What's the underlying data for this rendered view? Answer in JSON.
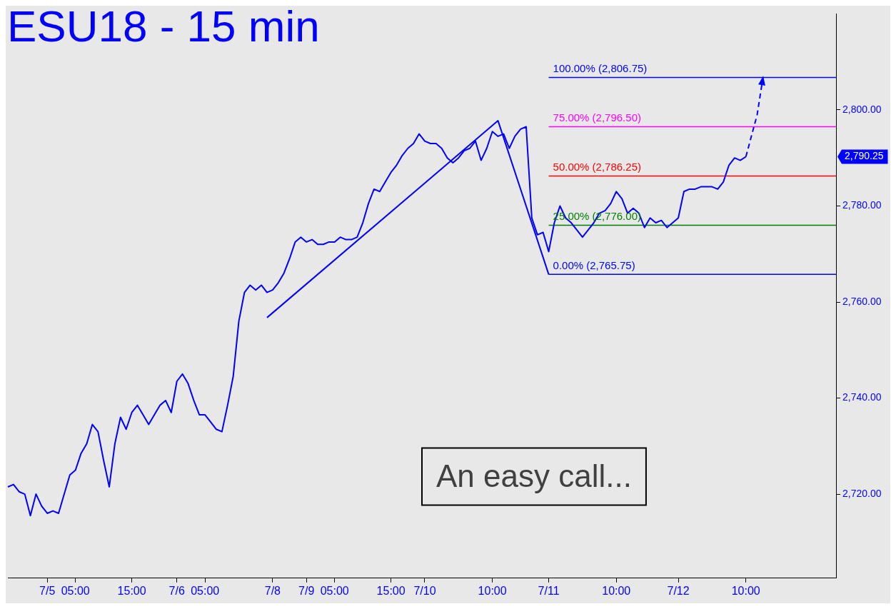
{
  "chart_data": {
    "type": "line",
    "title": "ESU18 - 15 min",
    "categories": [
      null,
      null,
      null,
      null,
      null,
      null,
      null,
      "7/5",
      null,
      null,
      null,
      null,
      "05:00",
      null,
      null,
      null,
      null,
      null,
      null,
      null,
      null,
      null,
      "15:00",
      null,
      null,
      null,
      null,
      null,
      null,
      null,
      "7/6",
      null,
      null,
      null,
      null,
      "05:00",
      null,
      null,
      null,
      null,
      null,
      null,
      null,
      null,
      null,
      null,
      null,
      "7/8",
      null,
      null,
      null,
      null,
      null,
      "7/9",
      null,
      null,
      null,
      null,
      "05:00",
      null,
      null,
      null,
      null,
      null,
      null,
      null,
      null,
      null,
      "15:00",
      null,
      null,
      null,
      null,
      null,
      "7/10",
      null,
      null,
      null,
      null,
      null,
      null,
      null,
      null,
      null,
      null,
      null,
      "10:00",
      null,
      null,
      null,
      null,
      null,
      null,
      null,
      null,
      null,
      "7/11",
      null,
      null,
      null,
      null,
      null,
      null,
      null,
      null,
      null,
      null,
      null,
      "10:00",
      null,
      null,
      null,
      null,
      null,
      null,
      null,
      null,
      null,
      null,
      "7/12",
      null,
      null,
      null,
      null,
      null,
      null,
      null,
      null,
      null,
      null,
      null,
      "10:00",
      null,
      null,
      null,
      null,
      null,
      null,
      null,
      null,
      null,
      null,
      null,
      null,
      null,
      null,
      null,
      null
    ],
    "series": [
      {
        "color": "#0000ff",
        "values": [
          2721.5,
          2722,
          2720.5,
          2720,
          2715.5,
          2720,
          2717.5,
          2716,
          2716.5,
          2716,
          2720,
          2724,
          2725,
          2728.5,
          2730.5,
          2734.5,
          2733,
          2727,
          2721.5,
          2730.5,
          2736,
          2733.5,
          2737,
          2738.5,
          2736.5,
          2734.5,
          2736.5,
          2738.5,
          2739.5,
          2737,
          2743.5,
          2745,
          2743,
          2739.5,
          2736.5,
          2736.5,
          2735,
          2733.5,
          2733,
          2738.5,
          2744.5,
          2756,
          2762,
          2763.5,
          2762.5,
          2763.5,
          2762,
          2762.5,
          2764,
          2766,
          2769,
          2772.5,
          2773.5,
          2772.5,
          2773,
          2772,
          2772,
          2772.5,
          2772.5,
          2773.5,
          2773,
          2773,
          2773.5,
          2776.5,
          2780.5,
          2783.5,
          2783,
          2785,
          2787,
          2788.5,
          2790.5,
          2792,
          2793,
          2795,
          2793.5,
          2793,
          2793,
          2792,
          2790,
          2789,
          2790,
          2791.5,
          2792,
          2793.5,
          2789.5,
          2792,
          2795.5,
          2794.5,
          2795,
          2792,
          2794.5,
          2796,
          2796.5,
          2777.5,
          2774,
          2774.5,
          2770.5,
          2776.5,
          2780,
          2777.5,
          2776.5,
          2775,
          2773.5,
          2775,
          2776.5,
          2778.5,
          2779,
          2780.5,
          2783,
          2781.5,
          2778.5,
          2779.5,
          2778.5,
          2775.5,
          2777.5,
          2776.5,
          2777,
          2775.5,
          2776.5,
          2777.5,
          2783,
          2783.5,
          2783.5,
          2784,
          2784,
          2784,
          2783.5,
          2785,
          2788.5,
          2790,
          2789.5,
          2790.25,
          null,
          null,
          null,
          null,
          null,
          null,
          null,
          null,
          null,
          null,
          null,
          null,
          null,
          null,
          null,
          null
        ]
      },
      {
        "color": "#0000ff",
        "values": [
          null,
          null,
          null,
          null,
          null,
          null,
          null,
          null,
          null,
          null,
          null,
          null,
          null,
          null,
          null,
          null,
          null,
          null,
          null,
          null,
          null,
          null,
          null,
          null,
          null,
          null,
          null,
          null,
          null,
          null,
          null,
          null,
          null,
          null,
          null,
          null,
          null,
          null,
          null,
          null,
          null,
          null,
          null,
          null,
          null,
          null,
          2756.75,
          null,
          null,
          null,
          null,
          null,
          null,
          null,
          null,
          null,
          null,
          null,
          null,
          null,
          null,
          null,
          null,
          null,
          null,
          null,
          null,
          null,
          null,
          null,
          null,
          null,
          null,
          null,
          null,
          null,
          null,
          null,
          null,
          null,
          null,
          null,
          null,
          null,
          null,
          null,
          null,
          2797.75,
          null,
          null,
          null,
          null,
          null,
          null,
          null,
          null,
          2765.75,
          null,
          null,
          null,
          null,
          null,
          null,
          null,
          null,
          null,
          null,
          null,
          null,
          null,
          null,
          null,
          null,
          null,
          null,
          null,
          null,
          null,
          null,
          null,
          null,
          null,
          null,
          null,
          null,
          null,
          null,
          null,
          null,
          null,
          null,
          null,
          null,
          null,
          null,
          null,
          null,
          null,
          null,
          null,
          null,
          null,
          null,
          null,
          null,
          null,
          null,
          null
        ]
      },
      {
        "color": "#0000ff",
        "line_style": "dashed",
        "values": [
          null,
          null,
          null,
          null,
          null,
          null,
          null,
          null,
          null,
          null,
          null,
          null,
          null,
          null,
          null,
          null,
          null,
          null,
          null,
          null,
          null,
          null,
          null,
          null,
          null,
          null,
          null,
          null,
          null,
          null,
          null,
          null,
          null,
          null,
          null,
          null,
          null,
          null,
          null,
          null,
          null,
          null,
          null,
          null,
          null,
          null,
          null,
          null,
          null,
          null,
          null,
          null,
          null,
          null,
          null,
          null,
          null,
          null,
          null,
          null,
          null,
          null,
          null,
          null,
          null,
          null,
          null,
          null,
          null,
          null,
          null,
          null,
          null,
          null,
          null,
          null,
          null,
          null,
          null,
          null,
          null,
          null,
          null,
          null,
          null,
          null,
          null,
          null,
          null,
          null,
          null,
          null,
          null,
          null,
          null,
          null,
          null,
          null,
          null,
          null,
          null,
          null,
          null,
          null,
          null,
          null,
          null,
          null,
          null,
          null,
          null,
          null,
          null,
          null,
          null,
          null,
          null,
          null,
          null,
          null,
          null,
          null,
          null,
          null,
          null,
          null,
          null,
          null,
          null,
          null,
          null,
          2790.25,
          null,
          2799,
          2806.5,
          null,
          null,
          null,
          null,
          null,
          null,
          null,
          null,
          null,
          null,
          null,
          null,
          null
        ]
      },
      {
        "name": "100.00% (2,806.75)",
        "color": "#0000ff",
        "values": [
          null,
          null,
          null,
          null,
          null,
          null,
          null,
          null,
          null,
          null,
          null,
          null,
          null,
          null,
          null,
          null,
          null,
          null,
          null,
          null,
          null,
          null,
          null,
          null,
          null,
          null,
          null,
          null,
          null,
          null,
          null,
          null,
          null,
          null,
          null,
          null,
          null,
          null,
          null,
          null,
          null,
          null,
          null,
          null,
          null,
          null,
          null,
          null,
          null,
          null,
          null,
          null,
          null,
          null,
          null,
          null,
          null,
          null,
          null,
          null,
          null,
          null,
          null,
          null,
          null,
          null,
          null,
          null,
          null,
          null,
          null,
          null,
          null,
          null,
          null,
          null,
          null,
          null,
          null,
          null,
          null,
          null,
          null,
          null,
          null,
          null,
          null,
          null,
          null,
          null,
          null,
          null,
          null,
          null,
          null,
          null,
          2806.75,
          2806.75,
          2806.75,
          2806.75,
          2806.75,
          2806.75,
          2806.75,
          2806.75,
          2806.75,
          2806.75,
          2806.75,
          2806.75,
          2806.75,
          2806.75,
          2806.75,
          2806.75,
          2806.75,
          2806.75,
          2806.75,
          2806.75,
          2806.75,
          2806.75,
          2806.75,
          2806.75,
          2806.75,
          2806.75,
          2806.75,
          2806.75,
          2806.75,
          2806.75,
          2806.75,
          2806.75,
          2806.75,
          2806.75,
          2806.75,
          2806.75,
          2806.75,
          2806.75,
          2806.75,
          2806.75,
          2806.75,
          2806.75,
          2806.75,
          2806.75,
          2806.75,
          2806.75,
          2806.75,
          2806.75,
          2806.75,
          2806.75,
          2806.75,
          2806.75
        ]
      },
      {
        "name": "75.00% (2,796.50)",
        "color": "#ff00ff",
        "values": [
          null,
          null,
          null,
          null,
          null,
          null,
          null,
          null,
          null,
          null,
          null,
          null,
          null,
          null,
          null,
          null,
          null,
          null,
          null,
          null,
          null,
          null,
          null,
          null,
          null,
          null,
          null,
          null,
          null,
          null,
          null,
          null,
          null,
          null,
          null,
          null,
          null,
          null,
          null,
          null,
          null,
          null,
          null,
          null,
          null,
          null,
          null,
          null,
          null,
          null,
          null,
          null,
          null,
          null,
          null,
          null,
          null,
          null,
          null,
          null,
          null,
          null,
          null,
          null,
          null,
          null,
          null,
          null,
          null,
          null,
          null,
          null,
          null,
          null,
          null,
          null,
          null,
          null,
          null,
          null,
          null,
          null,
          null,
          null,
          null,
          null,
          null,
          null,
          null,
          null,
          null,
          null,
          null,
          null,
          null,
          null,
          2796.5,
          2796.5,
          2796.5,
          2796.5,
          2796.5,
          2796.5,
          2796.5,
          2796.5,
          2796.5,
          2796.5,
          2796.5,
          2796.5,
          2796.5,
          2796.5,
          2796.5,
          2796.5,
          2796.5,
          2796.5,
          2796.5,
          2796.5,
          2796.5,
          2796.5,
          2796.5,
          2796.5,
          2796.5,
          2796.5,
          2796.5,
          2796.5,
          2796.5,
          2796.5,
          2796.5,
          2796.5,
          2796.5,
          2796.5,
          2796.5,
          2796.5,
          2796.5,
          2796.5,
          2796.5,
          2796.5,
          2796.5,
          2796.5,
          2796.5,
          2796.5,
          2796.5,
          2796.5,
          2796.5,
          2796.5,
          2796.5,
          2796.5,
          2796.5,
          2796.5
        ]
      },
      {
        "name": "50.00% (2,786.25)",
        "color": "#ff0000",
        "values": [
          null,
          null,
          null,
          null,
          null,
          null,
          null,
          null,
          null,
          null,
          null,
          null,
          null,
          null,
          null,
          null,
          null,
          null,
          null,
          null,
          null,
          null,
          null,
          null,
          null,
          null,
          null,
          null,
          null,
          null,
          null,
          null,
          null,
          null,
          null,
          null,
          null,
          null,
          null,
          null,
          null,
          null,
          null,
          null,
          null,
          null,
          null,
          null,
          null,
          null,
          null,
          null,
          null,
          null,
          null,
          null,
          null,
          null,
          null,
          null,
          null,
          null,
          null,
          null,
          null,
          null,
          null,
          null,
          null,
          null,
          null,
          null,
          null,
          null,
          null,
          null,
          null,
          null,
          null,
          null,
          null,
          null,
          null,
          null,
          null,
          null,
          null,
          null,
          null,
          null,
          null,
          null,
          null,
          null,
          null,
          null,
          2786.25,
          2786.25,
          2786.25,
          2786.25,
          2786.25,
          2786.25,
          2786.25,
          2786.25,
          2786.25,
          2786.25,
          2786.25,
          2786.25,
          2786.25,
          2786.25,
          2786.25,
          2786.25,
          2786.25,
          2786.25,
          2786.25,
          2786.25,
          2786.25,
          2786.25,
          2786.25,
          2786.25,
          2786.25,
          2786.25,
          2786.25,
          2786.25,
          2786.25,
          2786.25,
          2786.25,
          2786.25,
          2786.25,
          2786.25,
          2786.25,
          2786.25,
          2786.25,
          2786.25,
          2786.25,
          2786.25,
          2786.25,
          2786.25,
          2786.25,
          2786.25,
          2786.25,
          2786.25,
          2786.25,
          2786.25,
          2786.25,
          2786.25,
          2786.25,
          2786.25
        ]
      },
      {
        "name": "25.00% (2,776.00)",
        "color": "#008000",
        "values": [
          null,
          null,
          null,
          null,
          null,
          null,
          null,
          null,
          null,
          null,
          null,
          null,
          null,
          null,
          null,
          null,
          null,
          null,
          null,
          null,
          null,
          null,
          null,
          null,
          null,
          null,
          null,
          null,
          null,
          null,
          null,
          null,
          null,
          null,
          null,
          null,
          null,
          null,
          null,
          null,
          null,
          null,
          null,
          null,
          null,
          null,
          null,
          null,
          null,
          null,
          null,
          null,
          null,
          null,
          null,
          null,
          null,
          null,
          null,
          null,
          null,
          null,
          null,
          null,
          null,
          null,
          null,
          null,
          null,
          null,
          null,
          null,
          null,
          null,
          null,
          null,
          null,
          null,
          null,
          null,
          null,
          null,
          null,
          null,
          null,
          null,
          null,
          null,
          null,
          null,
          null,
          null,
          null,
          null,
          null,
          null,
          2776,
          2776,
          2776,
          2776,
          2776,
          2776,
          2776,
          2776,
          2776,
          2776,
          2776,
          2776,
          2776,
          2776,
          2776,
          2776,
          2776,
          2776,
          2776,
          2776,
          2776,
          2776,
          2776,
          2776,
          2776,
          2776,
          2776,
          2776,
          2776,
          2776,
          2776,
          2776,
          2776,
          2776,
          2776,
          2776,
          2776,
          2776,
          2776,
          2776,
          2776,
          2776,
          2776,
          2776,
          2776,
          2776,
          2776,
          2776,
          2776,
          2776,
          2776,
          2776
        ]
      },
      {
        "name": "0.00% (2,765.75)",
        "color": "#0000ff",
        "values": [
          null,
          null,
          null,
          null,
          null,
          null,
          null,
          null,
          null,
          null,
          null,
          null,
          null,
          null,
          null,
          null,
          null,
          null,
          null,
          null,
          null,
          null,
          null,
          null,
          null,
          null,
          null,
          null,
          null,
          null,
          null,
          null,
          null,
          null,
          null,
          null,
          null,
          null,
          null,
          null,
          null,
          null,
          null,
          null,
          null,
          null,
          null,
          null,
          null,
          null,
          null,
          null,
          null,
          null,
          null,
          null,
          null,
          null,
          null,
          null,
          null,
          null,
          null,
          null,
          null,
          null,
          null,
          null,
          null,
          null,
          null,
          null,
          null,
          null,
          null,
          null,
          null,
          null,
          null,
          null,
          null,
          null,
          null,
          null,
          null,
          null,
          null,
          null,
          null,
          null,
          null,
          null,
          null,
          null,
          null,
          null,
          2765.75,
          2765.75,
          2765.75,
          2765.75,
          2765.75,
          2765.75,
          2765.75,
          2765.75,
          2765.75,
          2765.75,
          2765.75,
          2765.75,
          2765.75,
          2765.75,
          2765.75,
          2765.75,
          2765.75,
          2765.75,
          2765.75,
          2765.75,
          2765.75,
          2765.75,
          2765.75,
          2765.75,
          2765.75,
          2765.75,
          2765.75,
          2765.75,
          2765.75,
          2765.75,
          2765.75,
          2765.75,
          2765.75,
          2765.75,
          2765.75,
          2765.75,
          2765.75,
          2765.75,
          2765.75,
          2765.75,
          2765.75,
          2765.75,
          2765.75,
          2765.75,
          2765.75,
          2765.75,
          2765.75,
          2765.75,
          2765.75,
          2765.75,
          2765.75,
          2765.75
        ]
      }
    ],
    "ylim": [
      2702.5,
      2820
    ],
    "yticks": [
      {
        "value": 2720,
        "label": "2,720.00"
      },
      {
        "value": 2740,
        "label": "2,740.00"
      },
      {
        "value": 2760,
        "label": "2,760.00"
      },
      {
        "value": 2780,
        "label": "2,780.00"
      },
      {
        "value": 2800,
        "label": "2,800.00"
      }
    ],
    "annotations": [
      "An easy call...",
      "2,790.25"
    ],
    "grid": false,
    "legend": false,
    "marker": "none"
  }
}
